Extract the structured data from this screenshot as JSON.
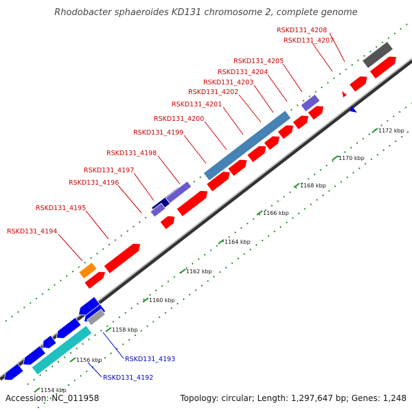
{
  "title": "Rhodobacter sphaeroides KD131 chromosome 2, complete genome",
  "footer": {
    "accession": "Accession: NC_011958",
    "summary": "Topology: circular; Length: 1,297,647 bp; Genes: 1,248"
  },
  "colors": {
    "forward_gene": "#ff0000",
    "reverse_gene": "#0000ee",
    "gc_light": "#4682b4",
    "gc_dark": "#000080",
    "gc_purple": "#6a5acd",
    "cyan": "#20c0c0",
    "orange": "#ff8c00",
    "gray": "#555555",
    "tick_dots": "#228b22"
  },
  "ticks": [
    "1154 kbp",
    "1156 kbp",
    "1158 kbp",
    "1160 kbp",
    "1162 kbp",
    "1164 kbp",
    "1166 kbp",
    "1168 kbp",
    "1170 kbp",
    "1172 kbp"
  ],
  "gene_labels": {
    "red": [
      "RSKD131_4194",
      "RSKD131_4195",
      "RSKD131_4196",
      "RSKD131_4197",
      "RSKD131_4198",
      "RSKD131_4199",
      "RSKD131_4200",
      "RSKD131_4201",
      "RSKD131_4202",
      "RSKD131_4203",
      "RSKD131_4204",
      "RSKD131_4205",
      "RSKD131_4207",
      "RSKD131_4208"
    ],
    "blue": [
      "RSKD131_4193",
      "RSKD131_4192"
    ]
  }
}
